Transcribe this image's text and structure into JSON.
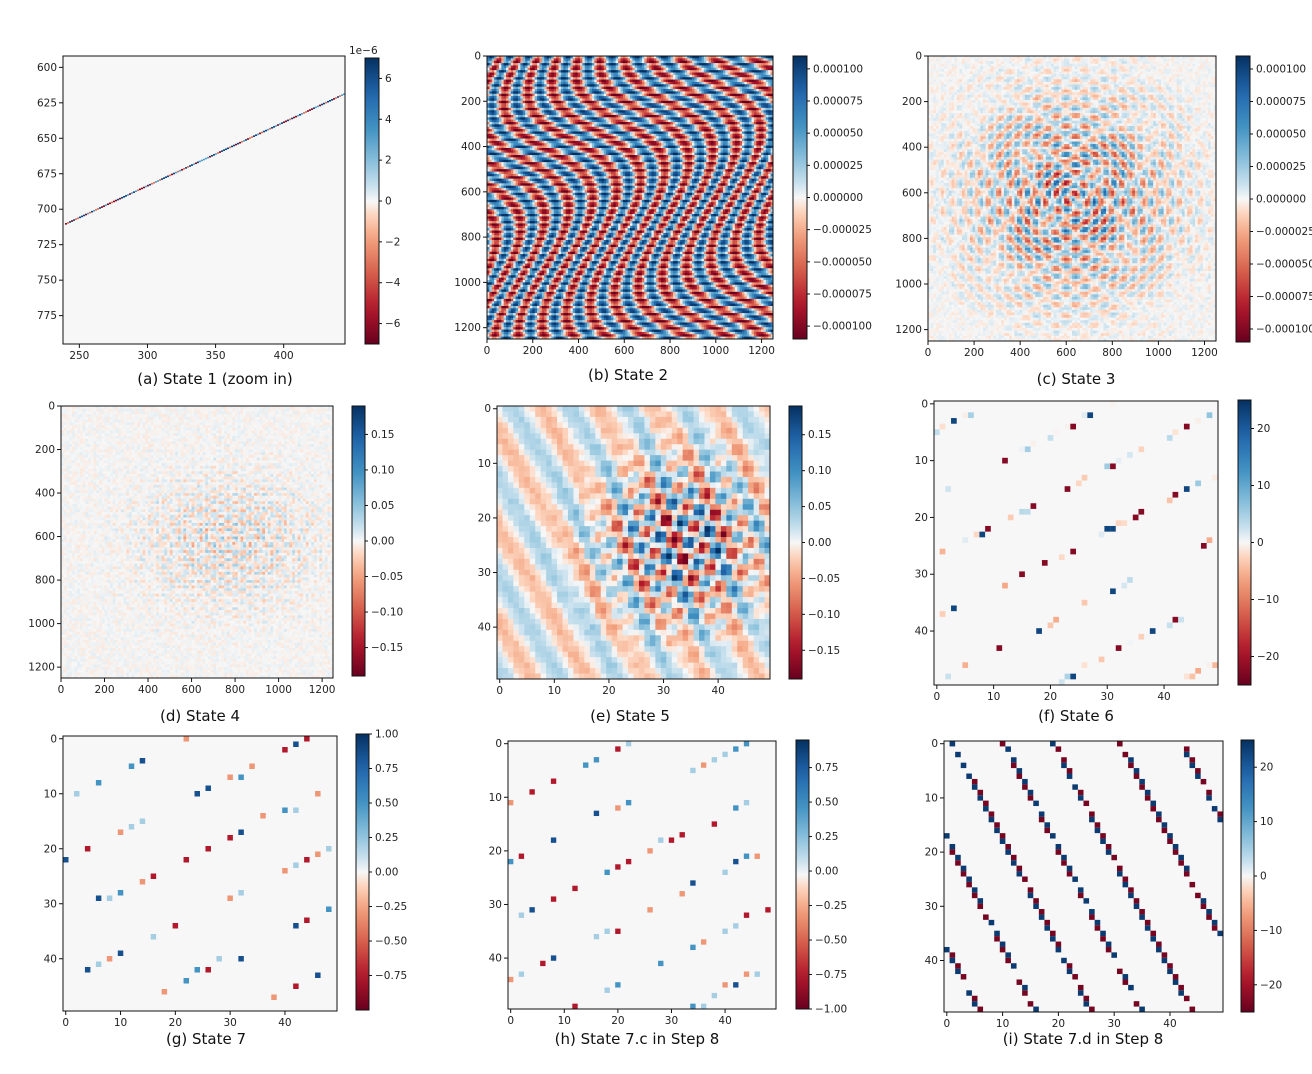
{
  "chart_data": [
    {
      "type": "heatmap",
      "caption": "(a) State 1 (zoom in)",
      "pattern": "diagonal-line",
      "x_ticks": [
        "250",
        "300",
        "350",
        "400"
      ],
      "x_tick_values": [
        250,
        300,
        350,
        400
      ],
      "xlim": [
        238,
        445
      ],
      "y_ticks": [
        "600",
        "625",
        "650",
        "675",
        "700",
        "725",
        "750",
        "775"
      ],
      "y_tick_values": [
        600,
        625,
        650,
        675,
        700,
        725,
        750,
        775
      ],
      "ylim": [
        592,
        795
      ],
      "colorbar": {
        "range": [
          -7,
          7
        ],
        "ticks": [
          "6",
          "4",
          "2",
          "0",
          "−2",
          "−4",
          "−6"
        ],
        "tick_values": [
          6,
          4,
          2,
          0,
          -2,
          -4,
          -6
        ],
        "offset_label": "1e−6"
      }
    },
    {
      "type": "heatmap",
      "caption": "(b) State 2",
      "pattern": "wave-stripes",
      "x_ticks": [
        "0",
        "200",
        "400",
        "600",
        "800",
        "1000",
        "1200"
      ],
      "x_tick_values": [
        0,
        200,
        400,
        600,
        800,
        1000,
        1200
      ],
      "xlim": [
        0,
        1250
      ],
      "y_ticks": [
        "0",
        "200",
        "400",
        "600",
        "800",
        "1000",
        "1200"
      ],
      "y_tick_values": [
        0,
        200,
        400,
        600,
        800,
        1000,
        1200
      ],
      "ylim": [
        0,
        1250
      ],
      "colorbar": {
        "range": [
          -0.00011,
          0.00011
        ],
        "ticks": [
          "0.000100",
          "0.000075",
          "0.000050",
          "0.000025",
          "0.000000",
          "−0.000025",
          "−0.000050",
          "−0.000075",
          "−0.000100"
        ],
        "tick_values": [
          0.0001,
          7.5e-05,
          5e-05,
          2.5e-05,
          0,
          -2.5e-05,
          -5e-05,
          -7.5e-05,
          -0.0001
        ]
      }
    },
    {
      "type": "heatmap",
      "caption": "(c) State 3",
      "pattern": "radial-rings",
      "x_ticks": [
        "0",
        "200",
        "400",
        "600",
        "800",
        "1000",
        "1200"
      ],
      "x_tick_values": [
        0,
        200,
        400,
        600,
        800,
        1000,
        1200
      ],
      "xlim": [
        0,
        1250
      ],
      "y_ticks": [
        "0",
        "200",
        "400",
        "600",
        "800",
        "1000",
        "1200"
      ],
      "y_tick_values": [
        0,
        200,
        400,
        600,
        800,
        1000,
        1200
      ],
      "ylim": [
        0,
        1250
      ],
      "colorbar": {
        "range": [
          -0.00011,
          0.00011
        ],
        "ticks": [
          "0.000100",
          "0.000075",
          "0.000050",
          "0.000025",
          "0.000000",
          "−0.000025",
          "−0.000050",
          "−0.000075",
          "−0.000100"
        ],
        "tick_values": [
          0.0001,
          7.5e-05,
          5e-05,
          2.5e-05,
          0,
          -2.5e-05,
          -5e-05,
          -7.5e-05,
          -0.0001
        ]
      }
    },
    {
      "type": "heatmap",
      "caption": "(d) State 4",
      "pattern": "offset-rings",
      "x_ticks": [
        "0",
        "200",
        "400",
        "600",
        "800",
        "1000",
        "1200"
      ],
      "x_tick_values": [
        0,
        200,
        400,
        600,
        800,
        1000,
        1200
      ],
      "xlim": [
        0,
        1250
      ],
      "y_ticks": [
        "0",
        "200",
        "400",
        "600",
        "800",
        "1000",
        "1200"
      ],
      "y_tick_values": [
        0,
        200,
        400,
        600,
        800,
        1000,
        1200
      ],
      "ylim": [
        0,
        1250
      ],
      "colorbar": {
        "range": [
          -0.19,
          0.19
        ],
        "ticks": [
          "0.15",
          "0.10",
          "0.05",
          "0.00",
          "−0.05",
          "−0.10",
          "−0.15"
        ],
        "tick_values": [
          0.15,
          0.1,
          0.05,
          0,
          -0.05,
          -0.1,
          -0.15
        ]
      }
    },
    {
      "type": "heatmap",
      "caption": "(e) State 5",
      "pattern": "blocky-interference",
      "x_ticks": [
        "0",
        "10",
        "20",
        "30",
        "40"
      ],
      "x_tick_values": [
        0,
        10,
        20,
        30,
        40
      ],
      "xlim": [
        -0.5,
        49.5
      ],
      "y_ticks": [
        "0",
        "10",
        "20",
        "30",
        "40"
      ],
      "y_tick_values": [
        0,
        10,
        20,
        30,
        40
      ],
      "ylim": [
        -0.5,
        49.5
      ],
      "colorbar": {
        "range": [
          -0.19,
          0.19
        ],
        "ticks": [
          "0.15",
          "0.10",
          "0.05",
          "0.00",
          "−0.05",
          "−0.10",
          "−0.15"
        ],
        "tick_values": [
          0.15,
          0.1,
          0.05,
          0,
          -0.05,
          -0.1,
          -0.15
        ]
      }
    },
    {
      "type": "heatmap",
      "caption": "(f) State 6",
      "pattern": "sparse-diagonal",
      "x_ticks": [
        "0",
        "10",
        "20",
        "30",
        "40"
      ],
      "x_tick_values": [
        0,
        10,
        20,
        30,
        40
      ],
      "xlim": [
        -0.5,
        49.5
      ],
      "y_ticks": [
        "0",
        "10",
        "20",
        "30",
        "40"
      ],
      "y_tick_values": [
        0,
        10,
        20,
        30,
        40
      ],
      "ylim": [
        -0.5,
        49.5
      ],
      "colorbar": {
        "range": [
          -25,
          25
        ],
        "ticks": [
          "20",
          "10",
          "0",
          "−10",
          "−20"
        ],
        "tick_values": [
          20,
          10,
          0,
          -10,
          -20
        ]
      }
    },
    {
      "type": "heatmap",
      "caption": "(g) State 7",
      "pattern": "sparse-points",
      "x_ticks": [
        "0",
        "10",
        "20",
        "30",
        "40"
      ],
      "x_tick_values": [
        0,
        10,
        20,
        30,
        40
      ],
      "xlim": [
        -0.5,
        49.5
      ],
      "y_ticks": [
        "0",
        "10",
        "20",
        "30",
        "40"
      ],
      "y_tick_values": [
        0,
        10,
        20,
        30,
        40
      ],
      "ylim": [
        -0.5,
        49.5
      ],
      "colorbar": {
        "range": [
          -1,
          1
        ],
        "ticks": [
          "1.00",
          "0.75",
          "0.50",
          "0.25",
          "0.00",
          "−0.25",
          "−0.50",
          "−0.75"
        ],
        "tick_values": [
          1,
          0.75,
          0.5,
          0.25,
          0,
          -0.25,
          -0.5,
          -0.75
        ]
      }
    },
    {
      "type": "heatmap",
      "caption": "(h) State 7.c in Step 8",
      "pattern": "sparse-points",
      "x_ticks": [
        "0",
        "10",
        "20",
        "30",
        "40"
      ],
      "x_tick_values": [
        0,
        10,
        20,
        30,
        40
      ],
      "xlim": [
        -0.5,
        49.5
      ],
      "y_ticks": [
        "0",
        "10",
        "20",
        "30",
        "40"
      ],
      "y_tick_values": [
        0,
        10,
        20,
        30,
        40
      ],
      "ylim": [
        -0.5,
        49.5
      ],
      "colorbar": {
        "range": [
          -1,
          0.95
        ],
        "ticks": [
          "0.75",
          "0.50",
          "0.25",
          "0.00",
          "−0.25",
          "−0.50",
          "−0.75",
          "−1.00"
        ],
        "tick_values": [
          0.75,
          0.5,
          0.25,
          0,
          -0.25,
          -0.5,
          -0.75,
          -1
        ]
      }
    },
    {
      "type": "heatmap",
      "caption": "(i) State 7.d in Step 8",
      "pattern": "dense-diagonal",
      "x_ticks": [
        "0",
        "10",
        "20",
        "30",
        "40"
      ],
      "x_tick_values": [
        0,
        10,
        20,
        30,
        40
      ],
      "xlim": [
        -0.5,
        49.5
      ],
      "y_ticks": [
        "0",
        "10",
        "20",
        "30",
        "40"
      ],
      "y_tick_values": [
        0,
        10,
        20,
        30,
        40
      ],
      "ylim": [
        -0.5,
        49.5
      ],
      "colorbar": {
        "range": [
          -25,
          25
        ],
        "ticks": [
          "20",
          "10",
          "0",
          "−10",
          "−20"
        ],
        "tick_values": [
          20,
          10,
          0,
          -10,
          -20
        ]
      }
    }
  ],
  "colormap": "RdBu",
  "colors": {
    "dark_red": "#67001f",
    "red": "#b2182b",
    "salmon": "#ef8a62",
    "peach": "#fddbc7",
    "neutral": "#f7f7f7",
    "light_blue": "#d1e5f0",
    "sky": "#67a9cf",
    "blue": "#2166ac",
    "dark_blue": "#053061"
  }
}
